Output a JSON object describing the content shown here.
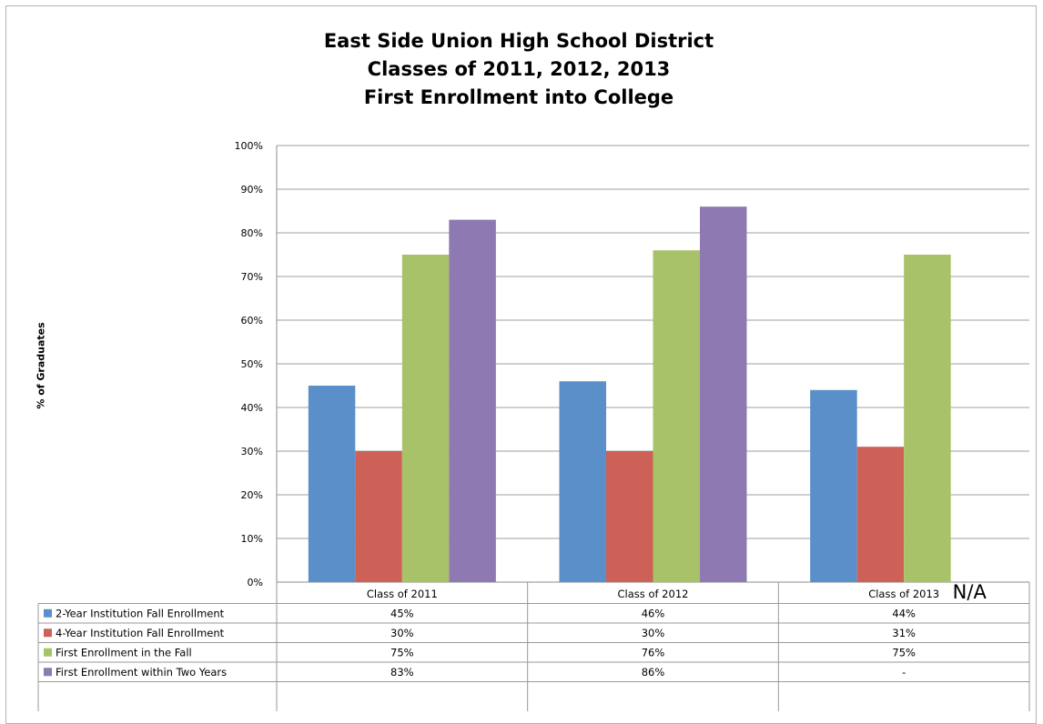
{
  "chart_data": {
    "type": "bar",
    "title_lines": [
      "East Side Union High School District",
      "Classes of 2011, 2012, 2013",
      "First Enrollment into College"
    ],
    "ylabel": "% of Graduates",
    "xlabel": "",
    "ylim": [
      0,
      100
    ],
    "yticks": [
      "0%",
      "10%",
      "20%",
      "30%",
      "40%",
      "50%",
      "60%",
      "70%",
      "80%",
      "90%",
      "100%"
    ],
    "grid": true,
    "legend": "data-table",
    "categories": [
      "Class of 2011",
      "Class of 2012",
      "Class of 2013"
    ],
    "series": [
      {
        "name": "2-Year Institution Fall Enrollment",
        "color": "#5b8fc9",
        "values": [
          45,
          46,
          44
        ],
        "labels": [
          "45%",
          "46%",
          "44%"
        ]
      },
      {
        "name": "4-Year Institution Fall Enrollment",
        "color": "#cd6157",
        "values": [
          30,
          30,
          31
        ],
        "labels": [
          "30%",
          "30%",
          "31%"
        ]
      },
      {
        "name": "First Enrollment in the Fall",
        "color": "#a8c26a",
        "values": [
          75,
          76,
          75
        ],
        "labels": [
          "75%",
          "76%",
          "75%"
        ]
      },
      {
        "name": "First Enrollment within Two Years",
        "color": "#8e79b2",
        "values": [
          83,
          86,
          null
        ],
        "labels": [
          "83%",
          "86%",
          "-"
        ]
      }
    ],
    "annotations": [
      "N/A"
    ]
  }
}
